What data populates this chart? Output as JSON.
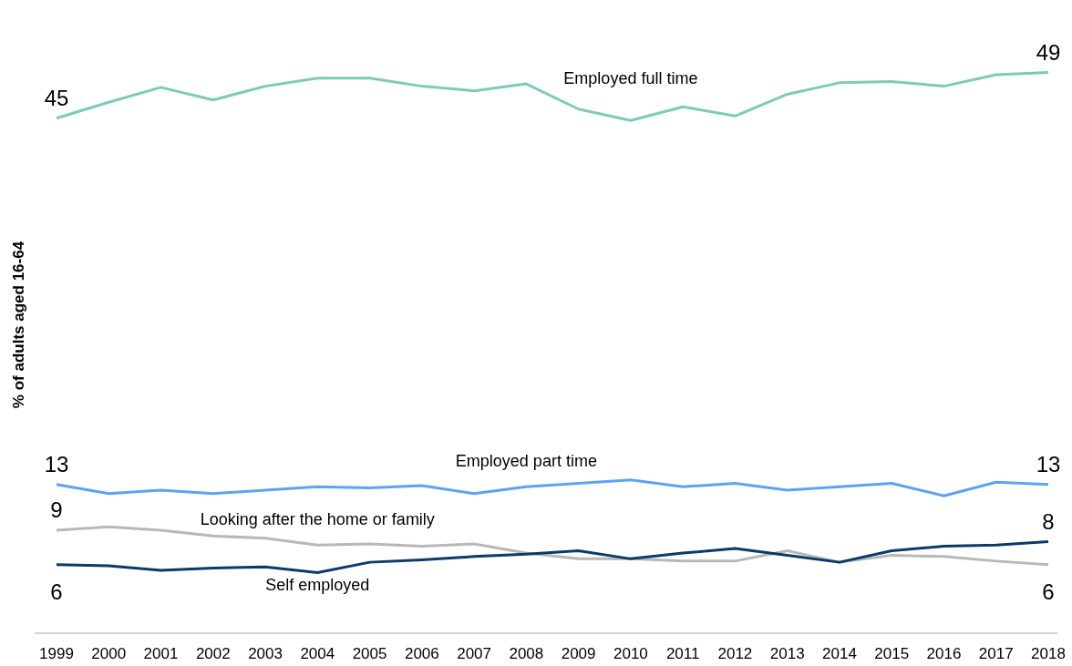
{
  "chart_data": {
    "type": "line",
    "ylabel": "% of adults aged 16-64",
    "categories": [
      "1999",
      "2000",
      "2001",
      "2002",
      "2003",
      "2004",
      "2005",
      "2006",
      "2007",
      "2008",
      "2009",
      "2010",
      "2011",
      "2012",
      "2013",
      "2014",
      "2015",
      "2016",
      "2017",
      "2018"
    ],
    "tick_labels": "x",
    "grid": false,
    "legend": false,
    "marker": "none",
    "line_style": "solid",
    "series": [
      {
        "name": "Employed full time",
        "color": "#7ecab8",
        "values": [
          45,
          46.4,
          47.7,
          46.6,
          47.8,
          48.5,
          48.5,
          47.8,
          47.4,
          48.0,
          45.8,
          44.8,
          46.0,
          45.2,
          47.1,
          48.1,
          48.2,
          47.8,
          48.8,
          49
        ],
        "value_labels": [
          "45",
          null,
          null,
          null,
          null,
          null,
          null,
          null,
          null,
          null,
          null,
          null,
          null,
          null,
          null,
          null,
          null,
          null,
          null,
          "49"
        ]
      },
      {
        "name": "Employed part time",
        "color": "#5ba3f5",
        "values": [
          13,
          12.2,
          12.5,
          12.2,
          12.5,
          12.8,
          12.7,
          12.9,
          12.2,
          12.8,
          13.1,
          13.4,
          12.8,
          13.1,
          12.5,
          12.8,
          13.1,
          12.0,
          13.2,
          13
        ],
        "value_labels": [
          "13",
          null,
          null,
          null,
          null,
          null,
          null,
          null,
          null,
          null,
          null,
          null,
          null,
          null,
          null,
          null,
          null,
          null,
          null,
          "13"
        ]
      },
      {
        "name": "Looking after the home or family",
        "color": "#b8b8b8",
        "values": [
          9,
          9.3,
          9.0,
          8.5,
          8.3,
          7.7,
          7.8,
          7.6,
          7.8,
          7.0,
          6.5,
          6.5,
          6.3,
          6.3,
          7.2,
          6.2,
          6.8,
          6.7,
          6.3,
          6
        ],
        "value_labels": [
          "9",
          null,
          null,
          null,
          null,
          null,
          null,
          null,
          null,
          null,
          null,
          null,
          null,
          null,
          null,
          null,
          null,
          null,
          null,
          "6"
        ]
      },
      {
        "name": "Self employed",
        "color": "#0b3a6b",
        "values": [
          6,
          5.9,
          5.5,
          5.7,
          5.8,
          5.3,
          6.2,
          6.4,
          6.7,
          6.9,
          7.2,
          6.5,
          7.0,
          7.4,
          6.8,
          6.2,
          7.2,
          7.6,
          7.7,
          8
        ],
        "value_labels": [
          "6",
          null,
          null,
          null,
          null,
          null,
          null,
          null,
          null,
          null,
          null,
          null,
          null,
          null,
          null,
          null,
          null,
          null,
          null,
          "8"
        ]
      }
    ]
  }
}
